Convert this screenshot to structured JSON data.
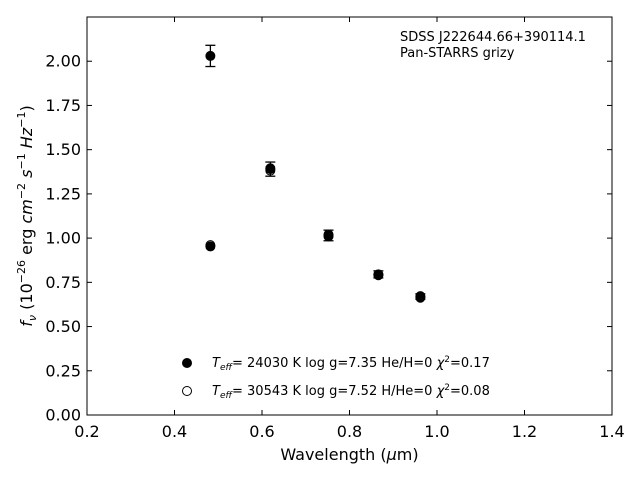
{
  "chart_data": {
    "type": "scatter",
    "annotations": [
      "SDSS J222644.66+390114.1",
      "Pan-STARRS grizy"
    ],
    "xlabel": "Wavelength (μm)",
    "ylabel": "f_ν (10^-26 erg cm^-2 s^-1 Hz^-1)",
    "xlim": [
      0.2,
      1.4
    ],
    "ylim": [
      0.0,
      2.25
    ],
    "xticks": [
      "0.2",
      "0.4",
      "0.6",
      "0.8",
      "1.0",
      "1.2",
      "1.4"
    ],
    "yticks": [
      "0.00",
      "0.25",
      "0.50",
      "0.75",
      "1.00",
      "1.25",
      "1.50",
      "1.75",
      "2.00"
    ],
    "grid": false,
    "legend_position": "bottom-center",
    "series": [
      {
        "name": "T_eff= 24030 K  log g=7.35  He/H=0  χ²=0.17",
        "marker": "filled-circle",
        "x": [
          0.482,
          0.619,
          0.752,
          0.866,
          0.962
        ],
        "y": [
          0.953,
          1.395,
          1.01,
          0.79,
          0.663
        ]
      },
      {
        "name": "T_eff= 30543 K  log g=7.52  H/He=0  χ²=0.08",
        "marker": "open-circle",
        "x": [
          0.482,
          0.619,
          0.752,
          0.866,
          0.962
        ],
        "y": [
          0.96,
          1.382,
          1.02,
          0.793,
          0.672
        ]
      }
    ],
    "observed": {
      "x": [
        0.482,
        0.619,
        0.752,
        0.866,
        0.962
      ],
      "y": [
        2.03,
        1.39,
        1.015,
        0.795,
        0.67
      ],
      "yerr": [
        0.06,
        0.04,
        0.03,
        0.02,
        0.015
      ]
    }
  }
}
